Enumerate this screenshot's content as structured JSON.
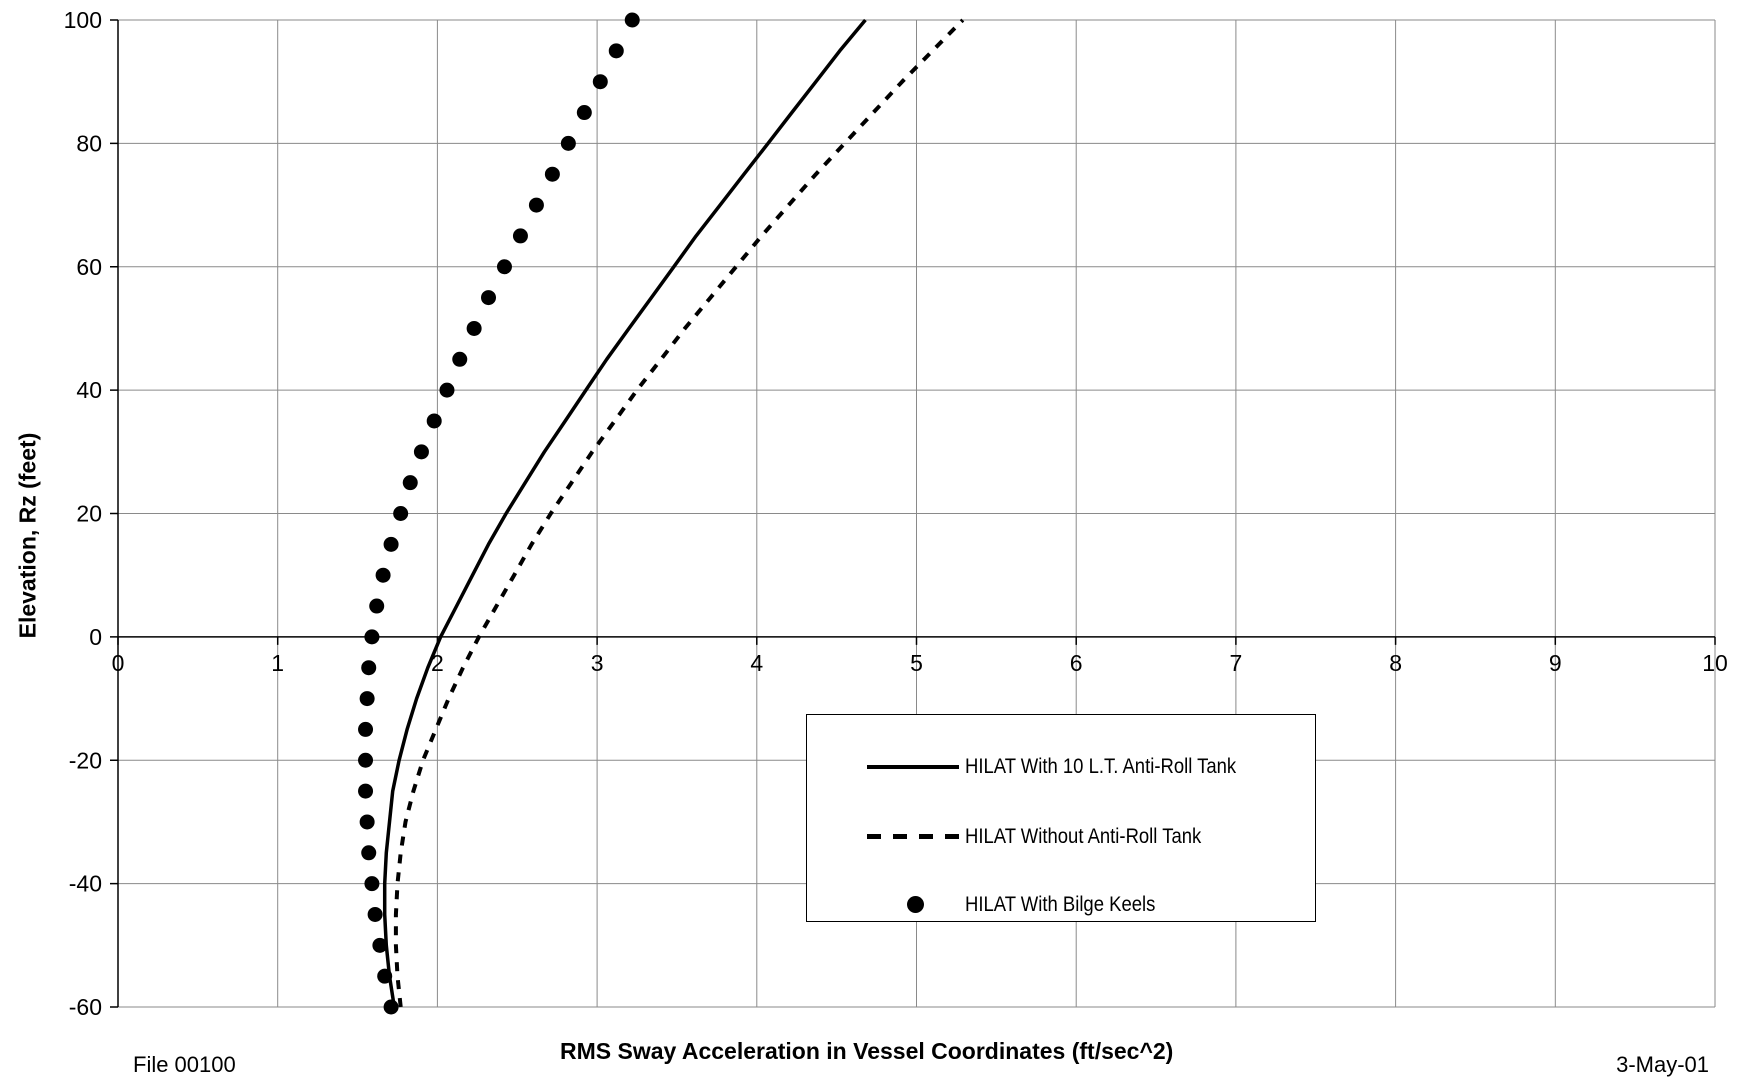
{
  "chart_data": {
    "type": "line",
    "xlabel": "RMS Sway Acceleration in Vessel Coordinates (ft/sec^2)",
    "ylabel": "Elevation, Rz (feet)",
    "xlim": [
      0,
      10
    ],
    "ylim": [
      -60,
      100
    ],
    "x_ticks": [
      0,
      1,
      2,
      3,
      4,
      5,
      6,
      7,
      8,
      9,
      10
    ],
    "y_ticks": [
      -60,
      -40,
      -20,
      0,
      20,
      40,
      60,
      80,
      100
    ],
    "grid": true,
    "legend_position": "center-right",
    "series": [
      {
        "name": "HILAT With 10 L.T. Anti-Roll Tank",
        "style": "solid",
        "color": "#000000",
        "points": [
          [
            1.73,
            -60
          ],
          [
            1.7,
            -55
          ],
          [
            1.68,
            -50
          ],
          [
            1.67,
            -45
          ],
          [
            1.67,
            -40
          ],
          [
            1.68,
            -35
          ],
          [
            1.7,
            -30
          ],
          [
            1.72,
            -25
          ],
          [
            1.76,
            -20
          ],
          [
            1.81,
            -15
          ],
          [
            1.87,
            -10
          ],
          [
            1.94,
            -5
          ],
          [
            2.02,
            0
          ],
          [
            2.12,
            5
          ],
          [
            2.22,
            10
          ],
          [
            2.32,
            15
          ],
          [
            2.43,
            20
          ],
          [
            2.55,
            25
          ],
          [
            2.67,
            30
          ],
          [
            2.8,
            35
          ],
          [
            2.93,
            40
          ],
          [
            3.06,
            45
          ],
          [
            3.2,
            50
          ],
          [
            3.34,
            55
          ],
          [
            3.48,
            60
          ],
          [
            3.62,
            65
          ],
          [
            3.77,
            70
          ],
          [
            3.92,
            75
          ],
          [
            4.07,
            80
          ],
          [
            4.22,
            85
          ],
          [
            4.37,
            90
          ],
          [
            4.52,
            95
          ],
          [
            4.68,
            100
          ]
        ]
      },
      {
        "name": "HILAT Without Anti-Roll Tank",
        "style": "dashed",
        "color": "#000000",
        "points": [
          [
            1.77,
            -60
          ],
          [
            1.75,
            -55
          ],
          [
            1.74,
            -50
          ],
          [
            1.74,
            -45
          ],
          [
            1.75,
            -40
          ],
          [
            1.77,
            -35
          ],
          [
            1.8,
            -30
          ],
          [
            1.85,
            -25
          ],
          [
            1.91,
            -20
          ],
          [
            1.99,
            -15
          ],
          [
            2.07,
            -10
          ],
          [
            2.16,
            -5
          ],
          [
            2.26,
            0
          ],
          [
            2.37,
            5
          ],
          [
            2.48,
            10
          ],
          [
            2.59,
            15
          ],
          [
            2.71,
            20
          ],
          [
            2.84,
            25
          ],
          [
            2.97,
            30
          ],
          [
            3.11,
            35
          ],
          [
            3.25,
            40
          ],
          [
            3.4,
            45
          ],
          [
            3.55,
            50
          ],
          [
            3.71,
            55
          ],
          [
            3.87,
            60
          ],
          [
            4.03,
            65
          ],
          [
            4.2,
            70
          ],
          [
            4.37,
            75
          ],
          [
            4.55,
            80
          ],
          [
            4.73,
            85
          ],
          [
            4.91,
            90
          ],
          [
            5.1,
            95
          ],
          [
            5.29,
            100
          ]
        ]
      },
      {
        "name": "HILAT With Bilge Keels",
        "style": "dots",
        "color": "#000000",
        "points": [
          [
            1.71,
            -60
          ],
          [
            1.67,
            -55
          ],
          [
            1.64,
            -50
          ],
          [
            1.61,
            -45
          ],
          [
            1.59,
            -40
          ],
          [
            1.57,
            -35
          ],
          [
            1.56,
            -30
          ],
          [
            1.55,
            -25
          ],
          [
            1.55,
            -20
          ],
          [
            1.55,
            -15
          ],
          [
            1.56,
            -10
          ],
          [
            1.57,
            -5
          ],
          [
            1.59,
            0
          ],
          [
            1.62,
            5
          ],
          [
            1.66,
            10
          ],
          [
            1.71,
            15
          ],
          [
            1.77,
            20
          ],
          [
            1.83,
            25
          ],
          [
            1.9,
            30
          ],
          [
            1.98,
            35
          ],
          [
            2.06,
            40
          ],
          [
            2.14,
            45
          ],
          [
            2.23,
            50
          ],
          [
            2.32,
            55
          ],
          [
            2.42,
            60
          ],
          [
            2.52,
            65
          ],
          [
            2.62,
            70
          ],
          [
            2.72,
            75
          ],
          [
            2.82,
            80
          ],
          [
            2.92,
            85
          ],
          [
            3.02,
            90
          ],
          [
            3.12,
            95
          ],
          [
            3.22,
            100
          ]
        ]
      }
    ]
  },
  "footer": {
    "file_label": "File 00100",
    "date_label": "3-May-01"
  }
}
